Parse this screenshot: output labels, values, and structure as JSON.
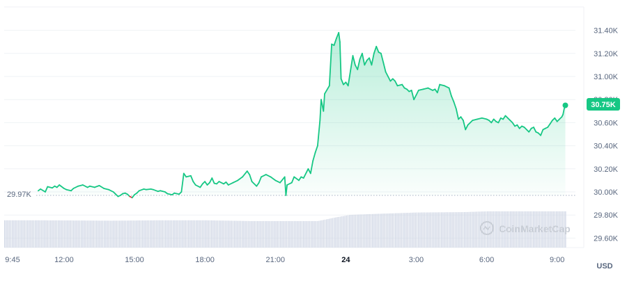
{
  "chart_data": {
    "type": "area",
    "title": "",
    "unit": "USD",
    "watermark": "CoinMarketCap",
    "baseline": {
      "value": 29970,
      "label": "29.97K"
    },
    "current": {
      "value": 30750,
      "label": "30.75K"
    },
    "ylim": [
      29500,
      31500
    ],
    "y_ticks": [
      {
        "value": 29600,
        "label": "29.60K"
      },
      {
        "value": 29800,
        "label": "29.80K"
      },
      {
        "value": 30000,
        "label": "30.00K"
      },
      {
        "value": 30200,
        "label": "30.20K"
      },
      {
        "value": 30400,
        "label": "30.40K"
      },
      {
        "value": 30600,
        "label": "30.60K"
      },
      {
        "value": 30800,
        "label": "30.80K"
      },
      {
        "value": 31000,
        "label": "31.00K"
      },
      {
        "value": 31200,
        "label": "31.20K"
      },
      {
        "value": 31400,
        "label": "31.40K"
      }
    ],
    "x_ticks": [
      {
        "t": 9.75,
        "label": "9:45"
      },
      {
        "t": 12,
        "label": "12:00"
      },
      {
        "t": 15,
        "label": "15:00"
      },
      {
        "t": 18,
        "label": "18:00"
      },
      {
        "t": 21,
        "label": "21:00"
      },
      {
        "t": 24,
        "label": "24",
        "bold": true
      },
      {
        "t": 27,
        "label": "3:00"
      },
      {
        "t": 30,
        "label": "6:00"
      },
      {
        "t": 33,
        "label": "9:00"
      }
    ],
    "xlim": [
      9.45,
      33.9
    ],
    "colors": {
      "up": "#16c784",
      "down": "#ea3943",
      "baseline": "#a6b0c3",
      "grid": "#eff2f5",
      "volume": "#cfd6e4"
    },
    "series": [
      {
        "values": [
          [
            10.9,
            30010
          ],
          [
            11.0,
            30025
          ],
          [
            11.2,
            30000
          ],
          [
            11.3,
            30045
          ],
          [
            11.5,
            30035
          ],
          [
            11.6,
            30050
          ],
          [
            11.7,
            30040
          ],
          [
            11.8,
            30060
          ],
          [
            12.0,
            30030
          ],
          [
            12.1,
            30020
          ],
          [
            12.3,
            30010
          ],
          [
            12.4,
            30030
          ],
          [
            12.6,
            30050
          ],
          [
            12.8,
            30060
          ],
          [
            13.0,
            30040
          ],
          [
            13.1,
            30050
          ],
          [
            13.3,
            30040
          ],
          [
            13.5,
            30055
          ],
          [
            13.7,
            30030
          ],
          [
            13.9,
            30020
          ],
          [
            14.1,
            30000
          ],
          [
            14.2,
            29980
          ],
          [
            14.3,
            29960
          ],
          [
            14.4,
            29970
          ],
          [
            14.5,
            29985
          ],
          [
            14.6,
            29990
          ],
          [
            14.7,
            29980
          ],
          [
            14.8,
            29960
          ],
          [
            14.9,
            29950
          ],
          [
            15.0,
            29975
          ],
          [
            15.1,
            29990
          ],
          [
            15.2,
            30010
          ],
          [
            15.4,
            30025
          ],
          [
            15.5,
            30020
          ],
          [
            15.7,
            30025
          ],
          [
            15.8,
            30020
          ],
          [
            16.0,
            30005
          ],
          [
            16.1,
            30010
          ],
          [
            16.3,
            30000
          ],
          [
            16.4,
            29985
          ],
          [
            16.6,
            29975
          ],
          [
            16.7,
            29990
          ],
          [
            16.9,
            29980
          ],
          [
            17.0,
            30000
          ],
          [
            17.1,
            30160
          ],
          [
            17.2,
            30130
          ],
          [
            17.4,
            30140
          ],
          [
            17.5,
            30090
          ],
          [
            17.6,
            30060
          ],
          [
            17.8,
            30040
          ],
          [
            17.9,
            30070
          ],
          [
            18.0,
            30090
          ],
          [
            18.1,
            30060
          ],
          [
            18.2,
            30080
          ],
          [
            18.3,
            30120
          ],
          [
            18.4,
            30075
          ],
          [
            18.5,
            30070
          ],
          [
            18.6,
            30090
          ],
          [
            18.8,
            30070
          ],
          [
            18.9,
            30085
          ],
          [
            19.0,
            30060
          ],
          [
            19.2,
            30080
          ],
          [
            19.4,
            30100
          ],
          [
            19.6,
            30130
          ],
          [
            19.8,
            30180
          ],
          [
            19.9,
            30150
          ],
          [
            20.0,
            30090
          ],
          [
            20.2,
            30050
          ],
          [
            20.3,
            30080
          ],
          [
            20.4,
            30130
          ],
          [
            20.6,
            30150
          ],
          [
            20.8,
            30130
          ],
          [
            21.0,
            30100
          ],
          [
            21.2,
            30080
          ],
          [
            21.4,
            30130
          ],
          [
            21.45,
            29970
          ],
          [
            21.5,
            30060
          ],
          [
            21.7,
            30080
          ],
          [
            21.8,
            30130
          ],
          [
            22.0,
            30100
          ],
          [
            22.1,
            30130
          ],
          [
            22.2,
            30120
          ],
          [
            22.4,
            30200
          ],
          [
            22.5,
            30160
          ],
          [
            22.6,
            30270
          ],
          [
            22.7,
            30340
          ],
          [
            22.8,
            30400
          ],
          [
            22.9,
            30620
          ],
          [
            22.95,
            30800
          ],
          [
            23.05,
            30700
          ],
          [
            23.1,
            30850
          ],
          [
            23.3,
            30920
          ],
          [
            23.4,
            31280
          ],
          [
            23.5,
            31270
          ],
          [
            23.6,
            31330
          ],
          [
            23.7,
            31380
          ],
          [
            23.75,
            31300
          ],
          [
            23.8,
            30980
          ],
          [
            23.9,
            30930
          ],
          [
            24.0,
            30950
          ],
          [
            24.1,
            30920
          ],
          [
            24.2,
            31050
          ],
          [
            24.3,
            31180
          ],
          [
            24.4,
            31100
          ],
          [
            24.5,
            31060
          ],
          [
            24.6,
            31150
          ],
          [
            24.7,
            31200
          ],
          [
            24.8,
            31100
          ],
          [
            24.9,
            31140
          ],
          [
            25.0,
            31160
          ],
          [
            25.1,
            31100
          ],
          [
            25.2,
            31200
          ],
          [
            25.3,
            31260
          ],
          [
            25.4,
            31210
          ],
          [
            25.5,
            31200
          ],
          [
            25.6,
            31120
          ],
          [
            25.7,
            31040
          ],
          [
            25.8,
            31000
          ],
          [
            25.9,
            30960
          ],
          [
            26.0,
            30980
          ],
          [
            26.1,
            30960
          ],
          [
            26.2,
            30920
          ],
          [
            26.4,
            30930
          ],
          [
            26.5,
            30900
          ],
          [
            26.6,
            30890
          ],
          [
            26.7,
            30870
          ],
          [
            26.8,
            30880
          ],
          [
            26.9,
            30800
          ],
          [
            27.0,
            30840
          ],
          [
            27.1,
            30880
          ],
          [
            27.3,
            30890
          ],
          [
            27.5,
            30900
          ],
          [
            27.7,
            30880
          ],
          [
            27.8,
            30890
          ],
          [
            27.9,
            30860
          ],
          [
            28.0,
            30930
          ],
          [
            28.2,
            30920
          ],
          [
            28.4,
            30900
          ],
          [
            28.5,
            30830
          ],
          [
            28.6,
            30780
          ],
          [
            28.7,
            30720
          ],
          [
            28.8,
            30630
          ],
          [
            28.9,
            30650
          ],
          [
            29.0,
            30620
          ],
          [
            29.1,
            30540
          ],
          [
            29.2,
            30580
          ],
          [
            29.3,
            30600
          ],
          [
            29.4,
            30620
          ],
          [
            29.6,
            30630
          ],
          [
            29.8,
            30640
          ],
          [
            30.0,
            30630
          ],
          [
            30.1,
            30620
          ],
          [
            30.2,
            30600
          ],
          [
            30.3,
            30630
          ],
          [
            30.4,
            30610
          ],
          [
            30.5,
            30600
          ],
          [
            30.6,
            30640
          ],
          [
            30.7,
            30630
          ],
          [
            30.8,
            30660
          ],
          [
            30.9,
            30640
          ],
          [
            31.0,
            30620
          ],
          [
            31.1,
            30600
          ],
          [
            31.2,
            30570
          ],
          [
            31.3,
            30580
          ],
          [
            31.4,
            30550
          ],
          [
            31.5,
            30570
          ],
          [
            31.6,
            30560
          ],
          [
            31.7,
            30540
          ],
          [
            31.8,
            30520
          ],
          [
            31.9,
            30550
          ],
          [
            32.0,
            30560
          ],
          [
            32.1,
            30520
          ],
          [
            32.2,
            30510
          ],
          [
            32.3,
            30490
          ],
          [
            32.4,
            30540
          ],
          [
            32.5,
            30550
          ],
          [
            32.6,
            30560
          ],
          [
            32.7,
            30590
          ],
          [
            32.8,
            30620
          ],
          [
            32.9,
            30640
          ],
          [
            33.0,
            30610
          ],
          [
            33.1,
            30630
          ],
          [
            33.2,
            30650
          ],
          [
            33.25,
            30670
          ],
          [
            33.3,
            30720
          ],
          [
            33.35,
            30750
          ]
        ]
      }
    ],
    "volume": {
      "x_start": 9.45,
      "x_end": 33.35,
      "levels": [
        [
          9.45,
          0.7
        ],
        [
          11.0,
          0.7
        ],
        [
          14.0,
          0.69
        ],
        [
          16.0,
          0.7
        ],
        [
          18.0,
          0.7
        ],
        [
          20.0,
          0.68
        ],
        [
          21.5,
          0.68
        ],
        [
          22.8,
          0.68
        ],
        [
          23.6,
          0.78
        ],
        [
          24.2,
          0.84
        ],
        [
          25.5,
          0.87
        ],
        [
          27.0,
          0.9
        ],
        [
          29.0,
          0.91
        ],
        [
          30.0,
          0.93
        ],
        [
          33.35,
          0.93
        ]
      ]
    }
  }
}
